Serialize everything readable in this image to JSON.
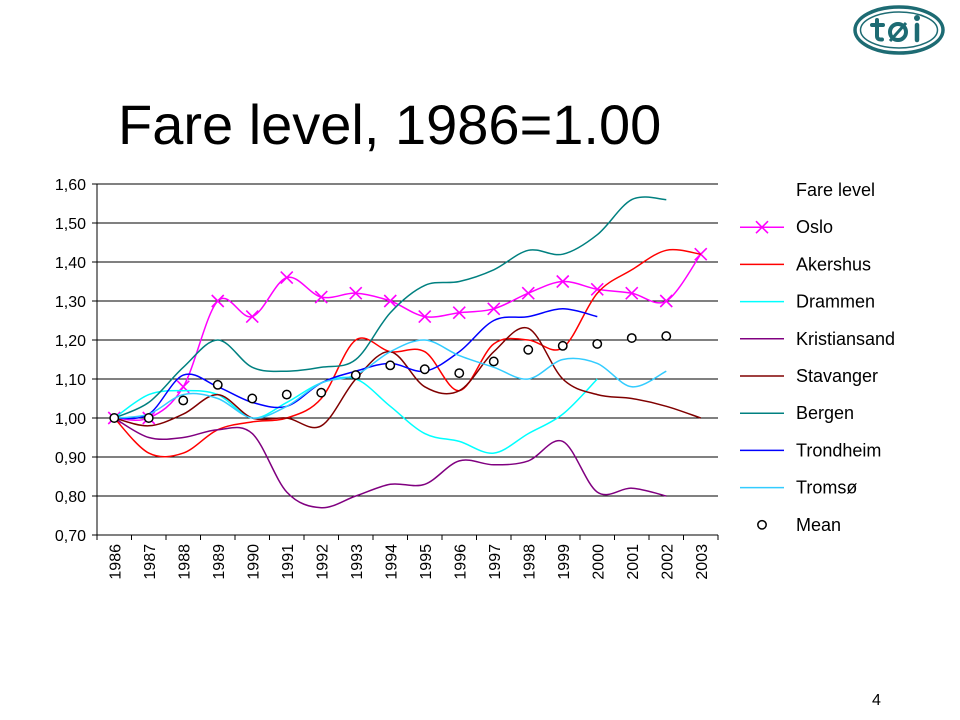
{
  "slide": {
    "title": "Fare level, 1986=1.00",
    "number": "4",
    "logo_text": "tøi"
  },
  "chart_data": {
    "type": "line",
    "title": "Fare level, 1986=1.00",
    "xlabel": "",
    "ylabel": "",
    "ylim": [
      0.7,
      1.6
    ],
    "y_ticks": [
      "0,70",
      "0,80",
      "0,90",
      "1,00",
      "1,10",
      "1,20",
      "1,30",
      "1,40",
      "1,50",
      "1,60"
    ],
    "categories": [
      "1986",
      "1987",
      "1988",
      "1989",
      "1990",
      "1991",
      "1992",
      "1993",
      "1994",
      "1995",
      "1996",
      "1997",
      "1998",
      "1999",
      "2000",
      "2001",
      "2002",
      "2003"
    ],
    "grid": "horizontal",
    "legend_position": "right",
    "legend_title": "Fare level",
    "series": [
      {
        "name": "Oslo",
        "color": "#ff00ff",
        "marker": "x",
        "values": [
          1.0,
          1.0,
          1.08,
          1.3,
          1.26,
          1.36,
          1.31,
          1.32,
          1.3,
          1.26,
          1.27,
          1.28,
          1.32,
          1.35,
          1.33,
          1.32,
          1.3,
          1.42
        ]
      },
      {
        "name": "Akershus",
        "color": "#ff0000",
        "marker": "none",
        "values": [
          1.0,
          0.91,
          0.91,
          0.97,
          0.99,
          1.0,
          1.05,
          1.2,
          1.17,
          1.17,
          1.07,
          1.19,
          1.2,
          1.18,
          1.32,
          1.38,
          1.43,
          1.42
        ]
      },
      {
        "name": "Drammen",
        "color": "#00ffff",
        "marker": "none",
        "values": [
          1.0,
          1.06,
          1.07,
          1.06,
          1.0,
          1.04,
          1.09,
          1.1,
          1.03,
          0.96,
          0.94,
          0.91,
          0.96,
          1.01,
          1.1,
          null,
          null,
          null
        ]
      },
      {
        "name": "Kristiansand",
        "color": "#800080",
        "marker": "none",
        "values": [
          1.0,
          0.95,
          0.95,
          0.97,
          0.96,
          0.81,
          0.77,
          0.8,
          0.83,
          0.83,
          0.89,
          0.88,
          0.89,
          0.94,
          0.81,
          0.82,
          0.8,
          null
        ]
      },
      {
        "name": "Stavanger",
        "color": "#800000",
        "marker": "none",
        "values": [
          1.0,
          0.98,
          1.01,
          1.06,
          1.0,
          1.0,
          0.98,
          1.1,
          1.17,
          1.08,
          1.07,
          1.17,
          1.23,
          1.1,
          1.06,
          1.05,
          1.03,
          1.0
        ]
      },
      {
        "name": "Bergen",
        "color": "#008080",
        "marker": "none",
        "values": [
          1.0,
          1.04,
          1.13,
          1.2,
          1.13,
          1.12,
          1.13,
          1.15,
          1.27,
          1.34,
          1.35,
          1.38,
          1.43,
          1.42,
          1.47,
          1.56,
          1.56,
          null
        ]
      },
      {
        "name": "Trondheim",
        "color": "#0000ff",
        "marker": "none",
        "values": [
          1.0,
          1.01,
          1.11,
          1.08,
          1.04,
          1.03,
          1.09,
          1.12,
          1.14,
          1.12,
          1.17,
          1.25,
          1.26,
          1.28,
          1.26,
          null,
          null,
          null
        ]
      },
      {
        "name": "Tromsø",
        "color": "#33ccff",
        "marker": "none",
        "values": [
          1.0,
          1.01,
          1.06,
          1.05,
          1.0,
          1.03,
          1.09,
          1.11,
          1.17,
          1.2,
          1.16,
          1.13,
          1.1,
          1.15,
          1.14,
          1.08,
          1.12,
          null
        ]
      },
      {
        "name": "Mean",
        "color": "#000000",
        "marker": "o",
        "values": [
          1.0,
          1.0,
          1.045,
          1.085,
          1.05,
          1.06,
          1.065,
          1.11,
          1.135,
          1.125,
          1.115,
          1.145,
          1.175,
          1.185,
          1.19,
          1.205,
          1.21,
          null
        ]
      }
    ]
  }
}
